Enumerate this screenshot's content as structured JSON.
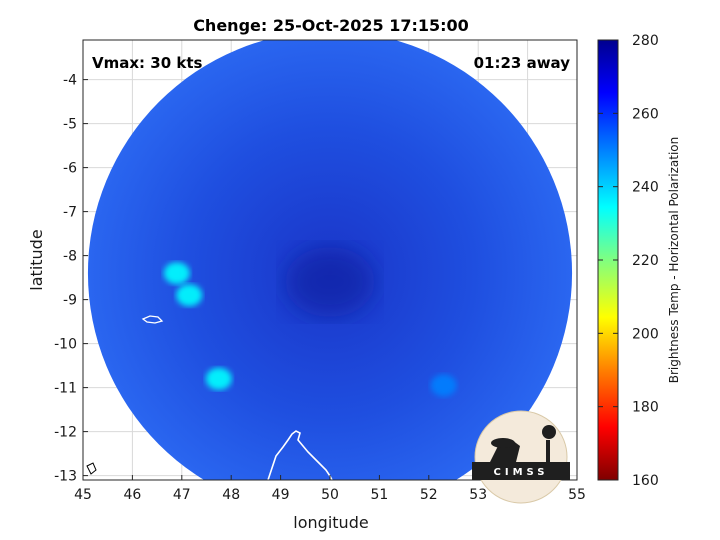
{
  "chart_data": {
    "type": "heatmap",
    "title": "Chenge: 25-Oct-2025 17:15:00",
    "annotations": {
      "vmax": "Vmax: 30 kts",
      "away": "01:23 away"
    },
    "xlabel": "longitude",
    "ylabel": "latitude",
    "xlim": [
      45,
      55
    ],
    "ylim": [
      -13.1,
      -3.1
    ],
    "xticks": [
      "45",
      "46",
      "47",
      "48",
      "49",
      "50",
      "51",
      "52",
      "53",
      "54",
      "55"
    ],
    "xtick_values": [
      45,
      46,
      47,
      48,
      49,
      50,
      51,
      52,
      53,
      54,
      55
    ],
    "yticks": [
      "-4",
      "-5",
      "-6",
      "-7",
      "-8",
      "-9",
      "-10",
      "-11",
      "-12",
      "-13"
    ],
    "ytick_values": [
      -4,
      -5,
      -6,
      -7,
      -8,
      -9,
      -10,
      -11,
      -12,
      -13
    ],
    "grid": true,
    "colorbar": {
      "label": "Brightness Temp - Horizontal Polarization",
      "range": [
        160,
        280
      ],
      "ticks": [
        "160",
        "180",
        "200",
        "220",
        "240",
        "260",
        "280"
      ],
      "tick_values": [
        160,
        180,
        200,
        220,
        240,
        260,
        280
      ],
      "colors": [
        "#7f0000",
        "#ff0000",
        "#ff8000",
        "#ffff00",
        "#80ff80",
        "#00ffff",
        "#0080ff",
        "#0000ff",
        "#00008f"
      ]
    },
    "swath": {
      "center_lon": 50.0,
      "center_lat": -8.4,
      "radius_deg": 4.9,
      "base_temp": 258
    },
    "features": [
      {
        "name": "cold cluster west",
        "lon": 47.15,
        "lat": -8.9,
        "temp": 232
      },
      {
        "name": "cold cluster west-north",
        "lon": 46.9,
        "lat": -8.4,
        "temp": 238
      },
      {
        "name": "cold patch south",
        "lon": 47.75,
        "lat": -10.8,
        "temp": 236
      },
      {
        "name": "cold spot southeast",
        "lon": 52.3,
        "lat": -10.95,
        "temp": 246
      },
      {
        "name": "warm core",
        "lon": 50.0,
        "lat": -8.6,
        "temp": 270
      }
    ],
    "logo": "CIMSS"
  }
}
